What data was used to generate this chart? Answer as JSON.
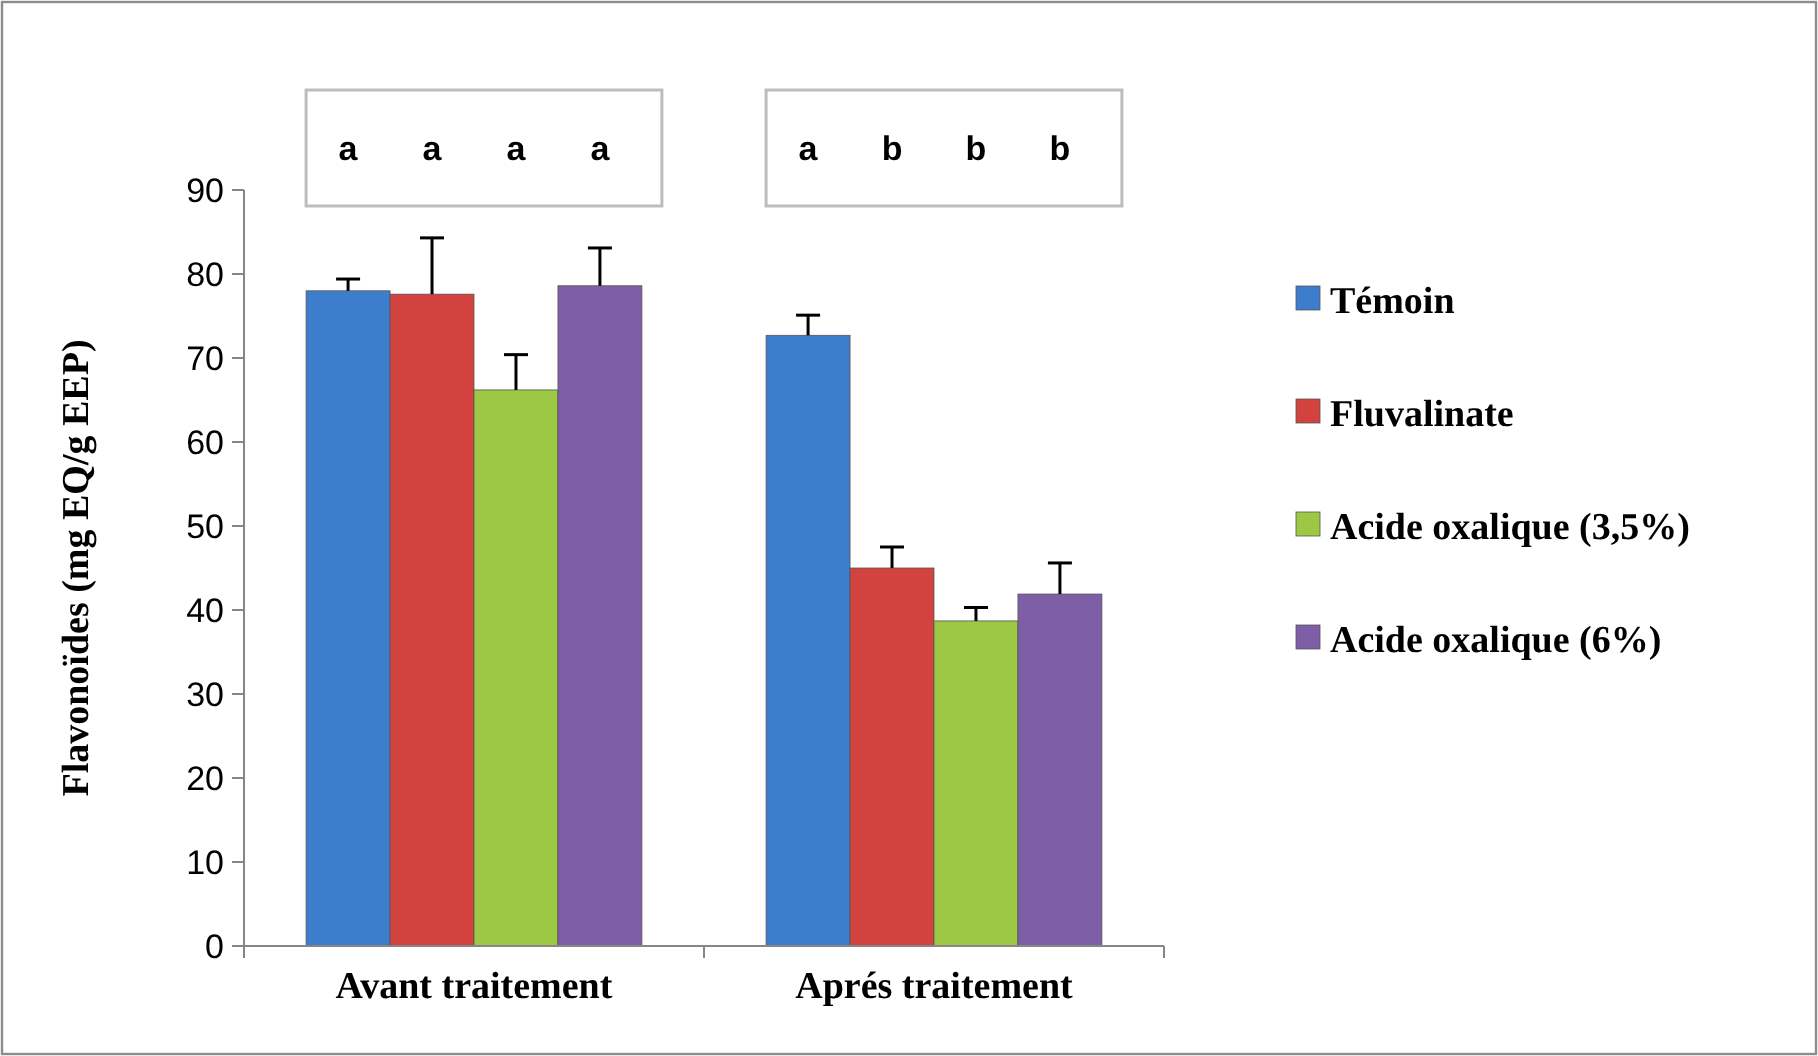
{
  "chart_data": {
    "type": "bar",
    "ylabel": "Flavonoïdes (mg EQ/g EEP)",
    "categories": [
      "Avant traitement",
      "Aprés traitement"
    ],
    "series": [
      {
        "name": "Témoin",
        "color": "#3c7dcc",
        "values": [
          78.0,
          72.7
        ],
        "errors": [
          [
            78.0,
            79.4
          ],
          [
            72.7,
            75.1
          ]
        ]
      },
      {
        "name": "Fluvalinate",
        "color": "#d24340",
        "values": [
          77.6,
          45.0
        ],
        "errors": [
          [
            77.6,
            84.3
          ],
          [
            45.0,
            47.5
          ]
        ]
      },
      {
        "name": "Acide oxalique (3,5%)",
        "color": "#9cc845",
        "values": [
          66.2,
          38.7
        ],
        "errors": [
          [
            66.2,
            70.4
          ],
          [
            38.7,
            40.3
          ]
        ]
      },
      {
        "name": "Acide oxalique (6%)",
        "color": "#7f5ea8",
        "values": [
          78.6,
          41.9
        ],
        "errors": [
          [
            78.6,
            83.1
          ],
          [
            41.9,
            45.6
          ]
        ]
      }
    ],
    "ylim": [
      0,
      90
    ],
    "yticks": [
      0,
      10,
      20,
      30,
      40,
      50,
      60,
      70,
      80,
      90
    ],
    "grid": false,
    "legend": "right",
    "annotations": [
      "a",
      "a",
      "a",
      "a",
      "a",
      "b",
      "b",
      "b"
    ]
  }
}
